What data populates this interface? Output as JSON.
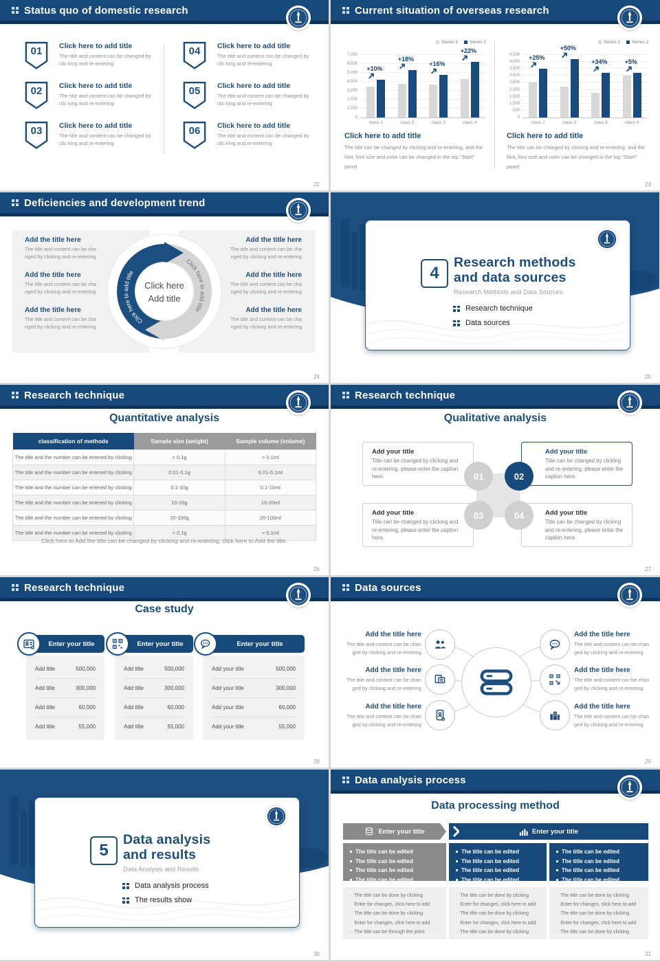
{
  "global": {
    "accent": "#17497B",
    "accent_dark": "#0E3356",
    "heading_color": "#1F4E79",
    "series1_color": "#D8D8D8",
    "series2_color": "#1B4A7E"
  },
  "slides": {
    "s22": {
      "header": "Status quo of domestic research",
      "page": "22",
      "items": [
        {
          "num": "01",
          "title": "Click here to add title",
          "body": "The title and content can be changed by clic king and re-entering"
        },
        {
          "num": "02",
          "title": "Click here to add title",
          "body": "The title and content can be changed by clic king and re-entering"
        },
        {
          "num": "03",
          "title": "Click here to add title",
          "body": "The title and content can be changed by clic king and re-entering"
        },
        {
          "num": "04",
          "title": "Click here to add title",
          "body": "The title and content can be changed by clic king and re-entering"
        },
        {
          "num": "05",
          "title": "Click here to add title",
          "body": "The title and content can be changed by clic king and re-entering"
        },
        {
          "num": "06",
          "title": "Click here to add title",
          "body": "The title and content can be changed by clic king and re-entering"
        }
      ]
    },
    "s23": {
      "header": "Current situation of overseas research",
      "page": "23",
      "panels": [
        {
          "heading": "Click here to add title",
          "body": "The title can be changed by clicking and re-entering, and the font, font size and color can be changed in the top \"Start\" panel"
        },
        {
          "heading": "Click here to add title",
          "body": "The title can be changed by clicking and re-entering, and the font, font size and color can be changed in the top \"Start\" panel"
        }
      ]
    },
    "s24": {
      "header": "Deficiencies and development trend",
      "page": "24",
      "center_line1": "Click here",
      "center_line2": "Add title",
      "arc_text_left": "Click here to add title",
      "arc_text_right": "Click here to add title",
      "left_items": [
        {
          "title": "Add the title here",
          "body": "The title and content can be cha nged by clicking and re-entering"
        },
        {
          "title": "Add the title here",
          "body": "The title and content can be cha nged by clicking and re-entering"
        },
        {
          "title": "Add the title here",
          "body": "The title and content can be cha nged by clicking and re-entering"
        }
      ],
      "right_items": [
        {
          "title": "Add the title here",
          "body": "The title and content can be cha nged by clicking and re-entering"
        },
        {
          "title": "Add the title here",
          "body": "The title and content can be cha nged by clicking and re-entering"
        },
        {
          "title": "Add the title here",
          "body": "The title and content can be cha nged by clicking and re-entering"
        }
      ]
    },
    "s25": {
      "page": "25",
      "number": "4",
      "title1": "Research methods",
      "title2": "and data sources",
      "subtitle": "Research Methods and Data Sources",
      "bullets": [
        "Research technique",
        "Data sources"
      ]
    },
    "s26": {
      "header": "Research technique",
      "page": "26",
      "title": "Quantitative analysis",
      "table": {
        "headers": [
          "classification of methods",
          "Sample size (weight)",
          "Sample volume (volume)"
        ],
        "rows": [
          [
            "The title and the number can be entered by clicking",
            "> 0.1g",
            "> 0.1ml"
          ],
          [
            "The title and the number can be entered by clicking",
            "0.01-0.1g",
            "0.01-0.1ml"
          ],
          [
            "The title and the number can be entered by clicking",
            "0.1-10g",
            "0.1-10ml"
          ],
          [
            "The title and the number can be entered by clicking",
            "10-20g",
            "10-20ml"
          ],
          [
            "The title and the number can be entered by clicking",
            "20-100g",
            "20-100ml"
          ],
          [
            "The title and the number can be entered by clicking",
            "< 0.1g",
            "< 0.1ml"
          ]
        ]
      },
      "footnote": "Click here to Add the title can be changed by clicking and re-entering, click here to Add the title."
    },
    "s27": {
      "header": "Research technique",
      "page": "27",
      "title": "Qualitative analysis",
      "numbers": [
        "01",
        "02",
        "03",
        "04"
      ],
      "cards": [
        {
          "title": "Add your title",
          "body": "Title can be changed by clicking and re-entering, please enter the caption here."
        },
        {
          "title": "Add your title",
          "body": "Title can be changed by clicking and re-entering, please enter the caption here."
        },
        {
          "title": "Add your title",
          "body": "Title can be changed by clicking and re-entering, please enter the caption here."
        },
        {
          "title": "Add your title",
          "body": "Title can be changed by clicking and re-entering, please enter the caption here."
        }
      ]
    },
    "s28": {
      "header": "Research technique",
      "page": "28",
      "title": "Case study",
      "columns": [
        {
          "header": "Enter your title",
          "icon": "id-card-icon",
          "rows": [
            {
              "label": "Add title",
              "value": "500,000"
            },
            {
              "label": "Add title",
              "value": "300,000"
            },
            {
              "label": "Add title",
              "value": "60,000"
            },
            {
              "label": "Add title",
              "value": "55,000"
            }
          ]
        },
        {
          "header": "Enter your title",
          "icon": "qr-scan-icon",
          "rows": [
            {
              "label": "Add title",
              "value": "500,000"
            },
            {
              "label": "Add title",
              "value": "300,000"
            },
            {
              "label": "Add title",
              "value": "60,000"
            },
            {
              "label": "Add title",
              "value": "55,000"
            }
          ]
        },
        {
          "header": "Enter your title",
          "icon": "chat-icon",
          "rows": [
            {
              "label": "Add your title",
              "value": "500,000"
            },
            {
              "label": "Add your title",
              "value": "300,000"
            },
            {
              "label": "Add your title",
              "value": "60,000"
            },
            {
              "label": "Add your title",
              "value": "55,000"
            }
          ]
        }
      ]
    },
    "s29": {
      "header": "Data sources",
      "page": "29",
      "left_nodes": [
        {
          "title": "Add the title here",
          "body": "The title and content can be chan ged by clicking and re-entering"
        },
        {
          "title": "Add the title here",
          "body": "The title and content can be chan ged by clicking and re-entering"
        },
        {
          "title": "Add the title here",
          "body": "The title and content can be chan ged by clicking and re-entering"
        }
      ],
      "right_nodes": [
        {
          "title": "Add the title here",
          "body": "The title and content can be chan ged by clicking and re-entering"
        },
        {
          "title": "Add the title here",
          "body": "The title and content can be chan ged by clicking and re-entering"
        },
        {
          "title": "Add the title here",
          "body": "The title and content can be chan ged by clicking and re-entering"
        }
      ]
    },
    "s30": {
      "page": "30",
      "number": "5",
      "title1": "Data analysis",
      "title2": "and results",
      "subtitle": "Data Analysis and Results",
      "bullets": [
        "Data analysis process",
        "The results show"
      ]
    },
    "s31": {
      "header": "Data analysis process",
      "page": "31",
      "title": "Data processing method",
      "flow_headers": [
        {
          "label": "Enter your title",
          "icon": "database-icon"
        },
        {
          "label": "Enter your title",
          "icon": "bar-chart-icon"
        }
      ],
      "mid_boxes": [
        {
          "items": [
            "The title can be edited",
            "The title can be edited",
            "The title can be edited",
            "The title can be edited"
          ]
        },
        {
          "items": [
            "The title can be edited",
            "The title can be edited",
            "The title can be edited",
            "The title can be edited"
          ]
        },
        {
          "items": [
            "The title can be edited",
            "The title can be edited",
            "The title can be edited",
            "The title can be edited"
          ]
        }
      ],
      "bottom_boxes": [
        {
          "items": [
            "The title can be done by clicking",
            "Enter for changes, click here to add",
            "The title can be done by clicking",
            "Enter for changes, click here to add",
            "The title can be through the point"
          ]
        },
        {
          "items": [
            "The title can be done by clicking",
            "Enter for changes, click here to add",
            "The title can be done by clicking",
            "Enter for changes, click here to add",
            "The title can be done by clicking"
          ]
        },
        {
          "items": [
            "The title can be done by clicking",
            "Enter for changes, click here to add",
            "The title can be done by clicking",
            "Enter for changes, click here to add",
            "The title can be done by clicking"
          ]
        }
      ]
    }
  },
  "chart_data": [
    {
      "type": "bar",
      "title": "",
      "categories": [
        "class 1",
        "class 2",
        "class 3",
        "class 4"
      ],
      "series": [
        {
          "name": "Series 1",
          "color": "#D8D8D8",
          "values": [
            3500,
            3800,
            3700,
            4300
          ]
        },
        {
          "name": "Series 2",
          "color": "#1B4A7E",
          "values": [
            4200,
            5300,
            4800,
            6200
          ]
        }
      ],
      "annotations": [
        "+10%",
        "+18%",
        "+16%",
        "+22%"
      ],
      "ylim": [
        0,
        7000
      ],
      "yticks": [
        {
          "v": 0,
          "label": "0"
        },
        {
          "v": 1000,
          "label": "1,000"
        },
        {
          "v": 2000,
          "label": "2,000"
        },
        {
          "v": 3000,
          "label": "3,000"
        },
        {
          "v": 4000,
          "label": "4,000"
        },
        {
          "v": 5000,
          "label": "5,000"
        },
        {
          "v": 6000,
          "label": "6,000"
        },
        {
          "v": 7000,
          "label": "7,000"
        }
      ],
      "grid": true,
      "legend_position": "top-right"
    },
    {
      "type": "bar",
      "title": "",
      "categories": [
        "class 1",
        "class 2",
        "class 3",
        "class 4"
      ],
      "series": [
        {
          "name": "Series 1",
          "color": "#D8D8D8",
          "values": [
            2500,
            2250,
            1800,
            3000
          ]
        },
        {
          "name": "Series 2",
          "color": "#1B4A7E",
          "values": [
            3500,
            4200,
            3200,
            3200
          ]
        }
      ],
      "annotations": [
        "+25%",
        "+50%",
        "+34%",
        "+5%"
      ],
      "ylim": [
        0,
        4500
      ],
      "yticks": [
        {
          "v": 0,
          "label": "0"
        },
        {
          "v": 500,
          "label": "500"
        },
        {
          "v": 1000,
          "label": "1,000"
        },
        {
          "v": 1500,
          "label": "1,500"
        },
        {
          "v": 2000,
          "label": "2,000"
        },
        {
          "v": 2500,
          "label": "2,500"
        },
        {
          "v": 3000,
          "label": "3,000"
        },
        {
          "v": 3500,
          "label": "3,500"
        },
        {
          "v": 4000,
          "label": "4,000"
        },
        {
          "v": 4500,
          "label": "4,500"
        }
      ],
      "grid": true,
      "legend_position": "top-right"
    }
  ]
}
